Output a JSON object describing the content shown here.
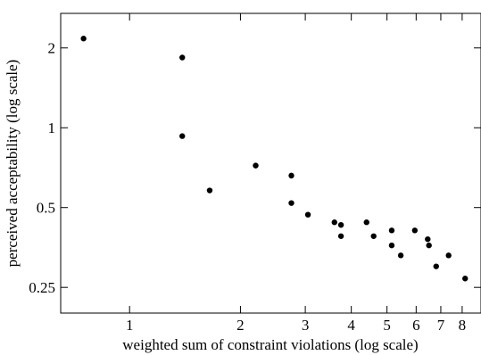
{
  "chart_data": {
    "type": "scatter",
    "xlabel": "weighted sum of constraint violations (log scale)",
    "ylabel": "perceived acceptability (log scale)",
    "x_scale": "log",
    "y_scale": "log",
    "xlim": [
      0.65,
      9.0
    ],
    "ylim": [
      0.2,
      2.7
    ],
    "x_ticks": [
      {
        "value": 1,
        "label": "1"
      },
      {
        "value": 2,
        "label": "2"
      },
      {
        "value": 3,
        "label": "3"
      },
      {
        "value": 4,
        "label": "4"
      },
      {
        "value": 5,
        "label": "5"
      },
      {
        "value": 6,
        "label": "6"
      },
      {
        "value": 7,
        "label": "7"
      },
      {
        "value": 8,
        "label": "8"
      }
    ],
    "y_ticks": [
      {
        "value": 0.25,
        "label": "0.25"
      },
      {
        "value": 0.5,
        "label": "0.5"
      },
      {
        "value": 1,
        "label": "1"
      },
      {
        "value": 2,
        "label": "2"
      }
    ],
    "grid": false,
    "legend": false,
    "marker_color": "#000000",
    "points": [
      {
        "x": 0.75,
        "y": 2.17
      },
      {
        "x": 1.39,
        "y": 1.84
      },
      {
        "x": 1.39,
        "y": 0.93
      },
      {
        "x": 1.65,
        "y": 0.58
      },
      {
        "x": 2.2,
        "y": 0.72
      },
      {
        "x": 2.75,
        "y": 0.66
      },
      {
        "x": 2.75,
        "y": 0.52
      },
      {
        "x": 3.05,
        "y": 0.47
      },
      {
        "x": 3.6,
        "y": 0.44
      },
      {
        "x": 3.75,
        "y": 0.43
      },
      {
        "x": 3.75,
        "y": 0.39
      },
      {
        "x": 4.4,
        "y": 0.44
      },
      {
        "x": 4.6,
        "y": 0.39
      },
      {
        "x": 5.15,
        "y": 0.41
      },
      {
        "x": 5.15,
        "y": 0.36
      },
      {
        "x": 5.45,
        "y": 0.33
      },
      {
        "x": 5.95,
        "y": 0.41
      },
      {
        "x": 6.45,
        "y": 0.38
      },
      {
        "x": 6.5,
        "y": 0.36
      },
      {
        "x": 6.8,
        "y": 0.3
      },
      {
        "x": 7.35,
        "y": 0.33
      },
      {
        "x": 8.15,
        "y": 0.27
      }
    ]
  }
}
